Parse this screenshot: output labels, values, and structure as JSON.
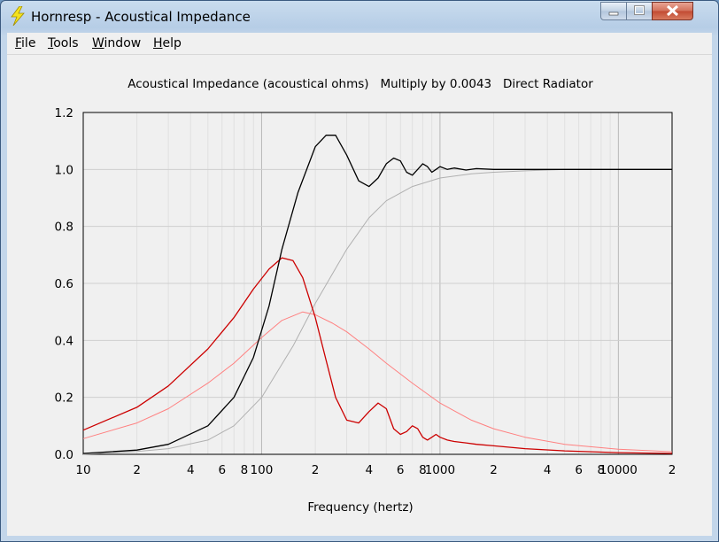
{
  "window": {
    "title": "Hornresp - Acoustical Impedance",
    "icon": "lightning-bolt-icon"
  },
  "menu": {
    "items": [
      {
        "accel": "F",
        "rest": "ile"
      },
      {
        "accel": "T",
        "rest": "ools"
      },
      {
        "accel": "W",
        "rest": "indow"
      },
      {
        "accel": "H",
        "rest": "elp"
      }
    ]
  },
  "colors": {
    "resistance": "#000000",
    "reactance": "#cc0000",
    "reference_resistance": "#b0b0b0",
    "reference_reactance": "#ff8080"
  },
  "chart_data": {
    "type": "line",
    "title": "Acoustical Impedance (acoustical ohms)   Multiply by 0.0043   Direct Radiator",
    "xlabel": "Frequency (hertz)",
    "ylabel": "",
    "x_scale": "log",
    "xlim": [
      10,
      20000
    ],
    "ylim": [
      0,
      1.2
    ],
    "grid": true,
    "y_ticks": [
      0,
      0.2,
      0.4,
      0.6,
      0.8,
      1.0,
      1.2
    ],
    "y_tick_labels": [
      "0.0",
      "0.2",
      "0.4",
      "0.6",
      "0.8",
      "1.0",
      "1.2"
    ],
    "x_tick_values": [
      10,
      20,
      40,
      60,
      80,
      100,
      200,
      400,
      600,
      800,
      1000,
      2000,
      4000,
      6000,
      8000,
      10000,
      20000
    ],
    "x_tick_labels": [
      "10",
      "2",
      "4",
      "6",
      "8",
      "100",
      "2",
      "4",
      "6",
      "8",
      "1000",
      "2",
      "4",
      "6",
      "8",
      "10000",
      "2"
    ],
    "series": [
      {
        "color": "#000000",
        "x": [
          10,
          20,
          30,
          50,
          70,
          90,
          110,
          130,
          160,
          200,
          230,
          260,
          300,
          350,
          400,
          450,
          500,
          550,
          600,
          650,
          700,
          750,
          800,
          850,
          900,
          950,
          1000,
          1100,
          1200,
          1400,
          1600,
          2000,
          3000,
          5000,
          10000,
          20000
        ],
        "y": [
          0.003,
          0.015,
          0.035,
          0.1,
          0.2,
          0.34,
          0.52,
          0.72,
          0.92,
          1.08,
          1.12,
          1.12,
          1.05,
          0.96,
          0.94,
          0.97,
          1.02,
          1.04,
          1.03,
          0.99,
          0.98,
          1.0,
          1.02,
          1.01,
          0.99,
          1.0,
          1.01,
          1.0,
          1.005,
          0.998,
          1.003,
          1.0,
          1.0,
          1.0,
          1.0,
          1.0
        ]
      },
      {
        "color": "#cc0000",
        "x": [
          10,
          20,
          30,
          50,
          70,
          90,
          110,
          130,
          150,
          170,
          200,
          230,
          260,
          300,
          350,
          400,
          450,
          500,
          550,
          600,
          650,
          700,
          750,
          800,
          850,
          900,
          950,
          1000,
          1100,
          1200,
          1400,
          1600,
          2000,
          3000,
          5000,
          10000,
          20000
        ],
        "y": [
          0.085,
          0.165,
          0.24,
          0.37,
          0.48,
          0.58,
          0.65,
          0.69,
          0.68,
          0.62,
          0.48,
          0.33,
          0.2,
          0.12,
          0.11,
          0.15,
          0.18,
          0.16,
          0.09,
          0.07,
          0.08,
          0.1,
          0.09,
          0.06,
          0.05,
          0.06,
          0.07,
          0.06,
          0.05,
          0.045,
          0.04,
          0.035,
          0.03,
          0.02,
          0.012,
          0.006,
          0.003
        ]
      },
      {
        "color": "#b0b0b0",
        "x": [
          10,
          20,
          30,
          50,
          70,
          100,
          150,
          200,
          300,
          400,
          500,
          700,
          1000,
          1500,
          2000,
          3000,
          5000,
          10000,
          20000
        ],
        "y": [
          0.0,
          0.01,
          0.02,
          0.05,
          0.1,
          0.2,
          0.38,
          0.53,
          0.72,
          0.83,
          0.89,
          0.94,
          0.97,
          0.985,
          0.99,
          0.995,
          1.0,
          1.0,
          1.0
        ]
      },
      {
        "color": "#ff8080",
        "x": [
          10,
          20,
          30,
          50,
          70,
          100,
          130,
          170,
          200,
          250,
          300,
          400,
          500,
          700,
          1000,
          1500,
          2000,
          3000,
          5000,
          10000,
          20000
        ],
        "y": [
          0.055,
          0.11,
          0.16,
          0.25,
          0.32,
          0.41,
          0.47,
          0.5,
          0.49,
          0.46,
          0.43,
          0.37,
          0.32,
          0.25,
          0.18,
          0.12,
          0.09,
          0.06,
          0.035,
          0.018,
          0.009
        ]
      }
    ]
  }
}
